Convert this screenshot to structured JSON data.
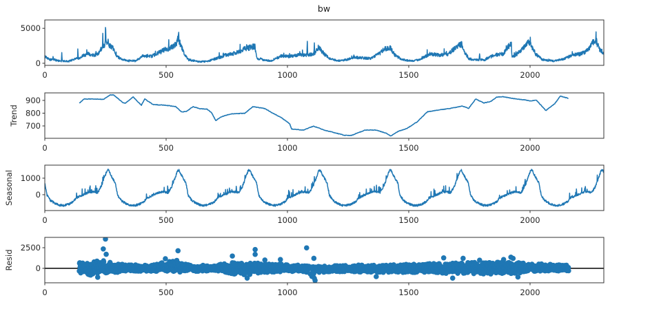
{
  "figure": {
    "title": "bw"
  },
  "style": {
    "line_color": "#1f77b4",
    "marker_color": "#1f77b4",
    "zero_line_color": "#000000",
    "frame_color": "#333333",
    "background": "#ffffff"
  },
  "chart_data": [
    {
      "name": "observed",
      "type": "line",
      "title": "bw",
      "xlabel": "",
      "ylabel": "",
      "xlim": [
        0,
        2304
      ],
      "ylim": [
        -300,
        6200
      ],
      "xticks": [
        0,
        500,
        1000,
        1500,
        2000
      ],
      "yticks": [
        0,
        5000
      ],
      "points": [
        [
          0,
          1010
        ],
        [
          12,
          700
        ],
        [
          23,
          520
        ],
        [
          33,
          600
        ],
        [
          34,
          1000
        ],
        [
          36,
          600
        ],
        [
          51,
          360
        ],
        [
          68,
          300
        ],
        [
          70,
          1660
        ],
        [
          72,
          300
        ],
        [
          99,
          300
        ],
        [
          128,
          690
        ],
        [
          135,
          700
        ],
        [
          136,
          1830
        ],
        [
          138,
          700
        ],
        [
          160,
          1100
        ],
        [
          176,
          1340
        ],
        [
          205,
          1170
        ],
        [
          225,
          1500
        ],
        [
          233,
          2150
        ],
        [
          238,
          2600
        ],
        [
          239,
          4110
        ],
        [
          241,
          2500
        ],
        [
          244,
          2300
        ],
        [
          249,
          3000
        ],
        [
          250,
          5900
        ],
        [
          252,
          3000
        ],
        [
          256,
          2600
        ],
        [
          261,
          2970
        ],
        [
          268,
          2500
        ],
        [
          278,
          2320
        ],
        [
          288,
          1600
        ],
        [
          298,
          1010
        ],
        [
          318,
          520
        ],
        [
          347,
          330
        ],
        [
          375,
          330
        ],
        [
          403,
          1000
        ],
        [
          440,
          1000
        ],
        [
          469,
          1500
        ],
        [
          497,
          1990
        ],
        [
          520,
          2200
        ],
        [
          531,
          2480
        ],
        [
          545,
          3000
        ],
        [
          549,
          3500
        ],
        [
          551,
          4600
        ],
        [
          553,
          3300
        ],
        [
          560,
          2640
        ],
        [
          574,
          1340
        ],
        [
          591,
          520
        ],
        [
          631,
          250
        ],
        [
          668,
          250
        ],
        [
          705,
          690
        ],
        [
          718,
          800
        ],
        [
          719,
          1830
        ],
        [
          721,
          800
        ],
        [
          744,
          1170
        ],
        [
          773,
          1340
        ],
        [
          801,
          1660
        ],
        [
          818,
          1990
        ],
        [
          852,
          2320
        ],
        [
          864,
          2400
        ],
        [
          866,
          3030
        ],
        [
          868,
          2000
        ],
        [
          875,
          690
        ],
        [
          903,
          500
        ],
        [
          932,
          330
        ],
        [
          972,
          1010
        ],
        [
          1009,
          1000
        ],
        [
          1045,
          1170
        ],
        [
          1080,
          1200
        ],
        [
          1082,
          3190
        ],
        [
          1084,
          1200
        ],
        [
          1108,
          1300
        ],
        [
          1111,
          2500
        ],
        [
          1113,
          1400
        ],
        [
          1128,
          2320
        ],
        [
          1151,
          1340
        ],
        [
          1173,
          690
        ],
        [
          1207,
          330
        ],
        [
          1244,
          520
        ],
        [
          1273,
          850
        ],
        [
          1341,
          690
        ],
        [
          1378,
          1340
        ],
        [
          1398,
          1990
        ],
        [
          1420,
          2200
        ],
        [
          1426,
          2150
        ],
        [
          1443,
          1170
        ],
        [
          1472,
          520
        ],
        [
          1511,
          330
        ],
        [
          1548,
          520
        ],
        [
          1585,
          1340
        ],
        [
          1625,
          1170
        ],
        [
          1662,
          1340
        ],
        [
          1696,
          2320
        ],
        [
          1719,
          2810
        ],
        [
          1724,
          1990
        ],
        [
          1747,
          690
        ],
        [
          1767,
          500
        ],
        [
          1790,
          500
        ],
        [
          1792,
          1500
        ],
        [
          1794,
          500
        ],
        [
          1813,
          500
        ],
        [
          1852,
          1170
        ],
        [
          1889,
          1340
        ],
        [
          1912,
          2480
        ],
        [
          1923,
          2640
        ],
        [
          1926,
          850
        ],
        [
          1945,
          1300
        ],
        [
          1966,
          1990
        ],
        [
          1989,
          3030
        ],
        [
          2003,
          2640
        ],
        [
          2023,
          1340
        ],
        [
          2051,
          520
        ],
        [
          2097,
          330
        ],
        [
          2145,
          690
        ],
        [
          2173,
          1170
        ],
        [
          2210,
          1340
        ],
        [
          2239,
          1830
        ],
        [
          2264,
          3200
        ],
        [
          2278,
          2810
        ],
        [
          2287,
          1990
        ],
        [
          2304,
          1500
        ]
      ]
    },
    {
      "name": "trend",
      "type": "line",
      "xlabel": "",
      "ylabel": "Trend",
      "xlim": [
        0,
        2304
      ],
      "ylim": [
        603,
        959
      ],
      "xticks": [
        0,
        500,
        1000,
        1500,
        2000
      ],
      "yticks": [
        700,
        800,
        900
      ],
      "points": [
        [
          142,
          878
        ],
        [
          162,
          911
        ],
        [
          213,
          911
        ],
        [
          241,
          908
        ],
        [
          270,
          943
        ],
        [
          284,
          943
        ],
        [
          321,
          884
        ],
        [
          332,
          879
        ],
        [
          364,
          927
        ],
        [
          398,
          862
        ],
        [
          412,
          911
        ],
        [
          446,
          868
        ],
        [
          497,
          862
        ],
        [
          540,
          851
        ],
        [
          563,
          811
        ],
        [
          582,
          812
        ],
        [
          611,
          851
        ],
        [
          639,
          835
        ],
        [
          668,
          832
        ],
        [
          688,
          803
        ],
        [
          705,
          740
        ],
        [
          724,
          770
        ],
        [
          767,
          794
        ],
        [
          824,
          799
        ],
        [
          858,
          851
        ],
        [
          909,
          835
        ],
        [
          929,
          811
        ],
        [
          974,
          766
        ],
        [
          1009,
          718
        ],
        [
          1017,
          676
        ],
        [
          1065,
          668
        ],
        [
          1108,
          698
        ],
        [
          1151,
          668
        ],
        [
          1207,
          641
        ],
        [
          1236,
          626
        ],
        [
          1264,
          626
        ],
        [
          1321,
          668
        ],
        [
          1364,
          668
        ],
        [
          1406,
          644
        ],
        [
          1426,
          621
        ],
        [
          1457,
          658
        ],
        [
          1492,
          680
        ],
        [
          1534,
          731
        ],
        [
          1577,
          811
        ],
        [
          1619,
          824
        ],
        [
          1662,
          835
        ],
        [
          1690,
          844
        ],
        [
          1719,
          856
        ],
        [
          1747,
          838
        ],
        [
          1776,
          911
        ],
        [
          1810,
          880
        ],
        [
          1838,
          892
        ],
        [
          1861,
          925
        ],
        [
          1889,
          929
        ],
        [
          1932,
          914
        ],
        [
          1974,
          905
        ],
        [
          2003,
          896
        ],
        [
          2026,
          902
        ],
        [
          2065,
          821
        ],
        [
          2102,
          875
        ],
        [
          2125,
          934
        ],
        [
          2159,
          916
        ]
      ]
    },
    {
      "name": "seasonal",
      "type": "line",
      "xlabel": "",
      "ylabel": "Seasonal",
      "xlim": [
        0,
        2304
      ],
      "ylim": [
        -960,
        1790
      ],
      "xticks": [
        0,
        500,
        1000,
        1500,
        2000
      ],
      "yticks": [
        0,
        1000
      ],
      "period": 291,
      "pattern": [
        [
          0,
          700
        ],
        [
          9,
          -30
        ],
        [
          24,
          -360
        ],
        [
          43,
          -530
        ],
        [
          62,
          -640
        ],
        [
          80,
          -650
        ],
        [
          99,
          -570
        ],
        [
          118,
          -420
        ],
        [
          128,
          -200
        ],
        [
          146,
          -90
        ],
        [
          165,
          40
        ],
        [
          184,
          160
        ],
        [
          203,
          170
        ],
        [
          217,
          120
        ],
        [
          232,
          480
        ],
        [
          246,
          1030
        ],
        [
          256,
          1450
        ],
        [
          262,
          1500
        ],
        [
          270,
          1250
        ],
        [
          280,
          980
        ],
        [
          291,
          700
        ]
      ]
    },
    {
      "name": "resid",
      "type": "scatter",
      "xlabel": "",
      "ylabel": "Resid",
      "xlim": [
        0,
        2304
      ],
      "ylim": [
        -1750,
        3750
      ],
      "xticks": [
        0,
        500,
        1000,
        1500,
        2000
      ],
      "yticks": [
        0,
        2500
      ],
      "x_range": [
        142,
        2159
      ],
      "envelope_hi_lo": [
        [
          142,
          700,
          600
        ],
        [
          200,
          900,
          900
        ],
        [
          230,
          1000,
          500
        ],
        [
          260,
          900,
          600
        ],
        [
          300,
          600,
          500
        ],
        [
          340,
          400,
          350
        ],
        [
          470,
          500,
          350
        ],
        [
          500,
          900,
          450
        ],
        [
          560,
          1000,
          500
        ],
        [
          600,
          400,
          400
        ],
        [
          700,
          400,
          300
        ],
        [
          760,
          700,
          600
        ],
        [
          830,
          700,
          900
        ],
        [
          900,
          600,
          500
        ],
        [
          1000,
          500,
          400
        ],
        [
          1080,
          300,
          500
        ],
        [
          1110,
          200,
          1400
        ],
        [
          1130,
          300,
          500
        ],
        [
          1200,
          400,
          400
        ],
        [
          1400,
          400,
          500
        ],
        [
          1600,
          600,
          500
        ],
        [
          1700,
          700,
          700
        ],
        [
          1900,
          800,
          700
        ],
        [
          1950,
          700,
          600
        ],
        [
          2000,
          600,
          400
        ],
        [
          2159,
          400,
          300
        ]
      ],
      "outliers": [
        [
          241,
          2350
        ],
        [
          250,
          3550
        ],
        [
          253,
          1700
        ],
        [
          218,
          -1080
        ],
        [
          497,
          1160
        ],
        [
          549,
          2130
        ],
        [
          773,
          1490
        ],
        [
          867,
          2280
        ],
        [
          867,
          1690
        ],
        [
          907,
          1010
        ],
        [
          971,
          1070
        ],
        [
          1079,
          2480
        ],
        [
          1109,
          1210
        ],
        [
          1114,
          -1460
        ],
        [
          1644,
          1270
        ],
        [
          1724,
          1210
        ],
        [
          1792,
          985
        ],
        [
          1891,
          1070
        ],
        [
          1921,
          1350
        ],
        [
          1930,
          1200
        ],
        [
          834,
          -1180
        ],
        [
          1681,
          -1180
        ],
        [
          1366,
          -1000
        ],
        [
          1950,
          -1050
        ]
      ],
      "reference_line": 0
    }
  ]
}
